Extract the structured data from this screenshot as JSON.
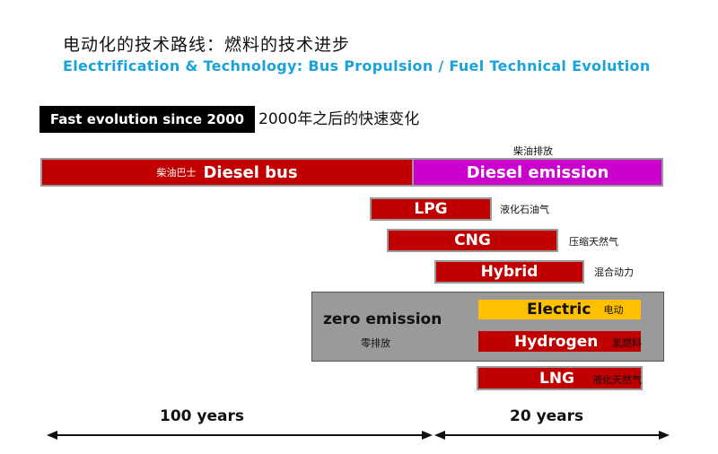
{
  "title_cn": "电动化的技术路线：燃料的技术进步",
  "title_en": "Electrification & Technology: Bus Propulsion / Fuel Technical Evolution",
  "badge": "Fast evolution since 2000",
  "subtitle_cn": "2000年之后的快速变化",
  "diesel_emission_cn": "柴油排放",
  "bars": {
    "diesel_bus": {
      "cn": "柴油巴士",
      "label": "Diesel bus"
    },
    "diesel_emission": {
      "label": "Diesel  emission"
    },
    "lpg": {
      "label": "LPG",
      "cn": "液化石油气"
    },
    "cng": {
      "label": "CNG",
      "cn": "压缩天然气"
    },
    "hybrid": {
      "label": "Hybrid",
      "cn": "混合动力"
    },
    "electric": {
      "label": "Electric",
      "cn": "电动"
    },
    "hydrogen": {
      "label": "Hydrogen",
      "cn": "氢燃料"
    },
    "lng": {
      "label": "LNG",
      "cn": "液化天然气"
    }
  },
  "zero_emission": {
    "label": "zero emission",
    "cn": "零排放"
  },
  "timeline": {
    "left_label": "100 years",
    "right_label": "20 years"
  },
  "colors": {
    "bar_red": "#c00000",
    "emission_magenta": "#cc00cc",
    "electric_yellow": "#ffc000",
    "title_blue": "#1aa3d9",
    "zero_box_gray": "#9a9a9a"
  }
}
